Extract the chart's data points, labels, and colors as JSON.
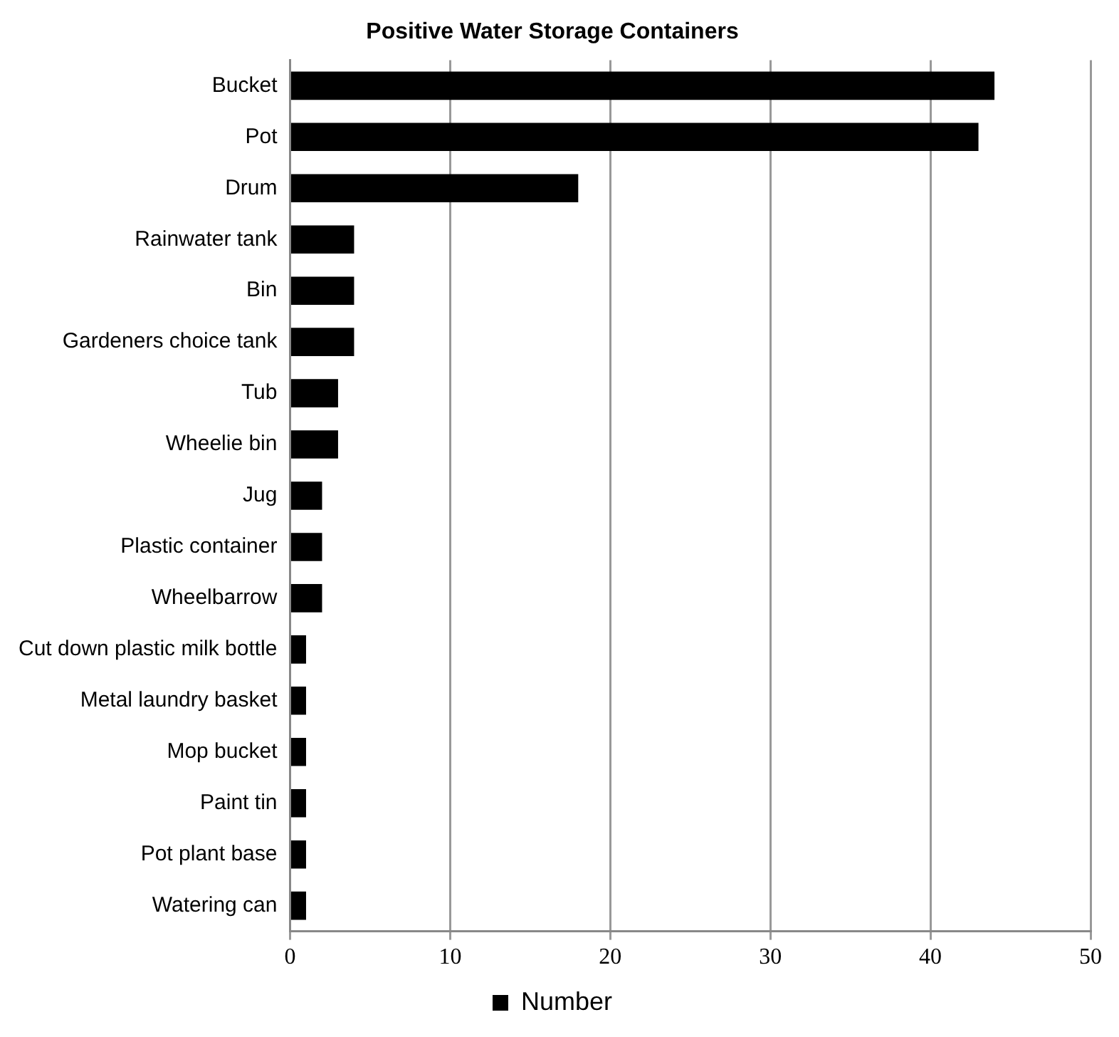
{
  "chart_data": {
    "type": "bar",
    "orientation": "horizontal",
    "title": "Positive Water Storage Containers",
    "categories": [
      "Bucket",
      "Pot",
      "Drum",
      "Rainwater tank",
      "Bin",
      "Gardeners choice tank",
      "Tub",
      "Wheelie bin",
      "Jug",
      "Plastic container",
      "Wheelbarrow",
      "Cut down plastic milk bottle",
      "Metal laundry basket",
      "Mop bucket",
      "Paint tin",
      "Pot plant base",
      "Watering can"
    ],
    "series": [
      {
        "name": "Number",
        "color": "#000000",
        "values": [
          44,
          43,
          18,
          4,
          4,
          4,
          3,
          3,
          2,
          2,
          2,
          1,
          1,
          1,
          1,
          1,
          1
        ]
      }
    ],
    "xlim": [
      0,
      50
    ],
    "xticks": [
      0,
      10,
      20,
      30,
      40,
      50
    ],
    "grid": "x",
    "legend": "bottom"
  }
}
